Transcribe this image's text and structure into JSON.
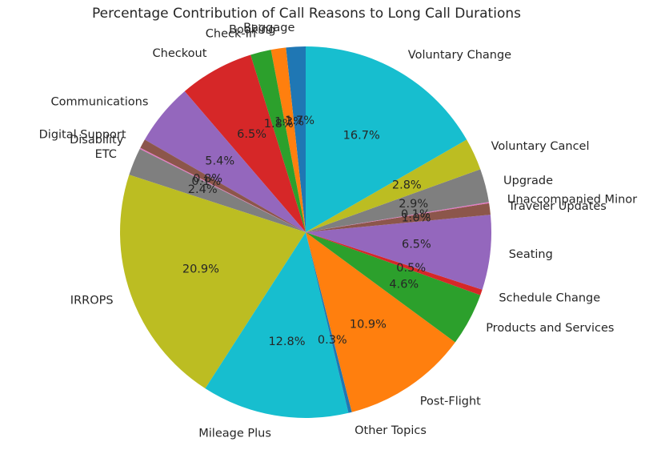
{
  "chart_data": {
    "type": "pie",
    "title": "Percentage Contribution of Call Reasons to Long Call Durations",
    "legend": "none",
    "slices": [
      {
        "label": "Baggage",
        "value": 1.7,
        "pct_label": "1.7%",
        "color": "#1f77b4"
      },
      {
        "label": "Booking",
        "value": 1.3,
        "pct_label": "1.3%",
        "color": "#ff7f0e"
      },
      {
        "label": "Check-In",
        "value": 1.8,
        "pct_label": "1.8%",
        "color": "#2ca02c"
      },
      {
        "label": "Checkout",
        "value": 6.5,
        "pct_label": "6.5%",
        "color": "#d62728"
      },
      {
        "label": "Communications",
        "value": 5.4,
        "pct_label": "5.4%",
        "color": "#9467bd"
      },
      {
        "label": "Digital Support",
        "value": 0.8,
        "pct_label": "0.8%",
        "color": "#8c564b"
      },
      {
        "label": "Disability",
        "value": 0.1,
        "pct_label": "0.1%",
        "color": "#e377c2"
      },
      {
        "label": "ETC",
        "value": 2.4,
        "pct_label": "2.4%",
        "color": "#7f7f7f"
      },
      {
        "label": "IRROPS",
        "value": 20.9,
        "pct_label": "20.9%",
        "color": "#bcbd22"
      },
      {
        "label": "Mileage Plus",
        "value": 12.8,
        "pct_label": "12.8%",
        "color": "#17becf"
      },
      {
        "label": "Other Topics",
        "value": 0.3,
        "pct_label": "0.3%",
        "color": "#1f77b4"
      },
      {
        "label": "Post-Flight",
        "value": 10.9,
        "pct_label": "10.9%",
        "color": "#ff7f0e"
      },
      {
        "label": "Products and Services",
        "value": 4.6,
        "pct_label": "4.6%",
        "color": "#2ca02c"
      },
      {
        "label": "Schedule Change",
        "value": 0.5,
        "pct_label": "0.5%",
        "color": "#d62728"
      },
      {
        "label": "Seating",
        "value": 6.5,
        "pct_label": "6.5%",
        "color": "#9467bd"
      },
      {
        "label": "Traveler Updates",
        "value": 1.0,
        "pct_label": "1.0%",
        "color": "#8c564b"
      },
      {
        "label": "Unaccompanied Minor",
        "value": 0.1,
        "pct_label": "0.1%",
        "color": "#e377c2"
      },
      {
        "label": "Upgrade",
        "value": 2.9,
        "pct_label": "2.9%",
        "color": "#7f7f7f"
      },
      {
        "label": "Voluntary Cancel",
        "value": 2.8,
        "pct_label": "2.8%",
        "color": "#bcbd22"
      },
      {
        "label": "Voluntary Change",
        "value": 16.7,
        "pct_label": "16.7%",
        "color": "#17becf"
      }
    ]
  }
}
